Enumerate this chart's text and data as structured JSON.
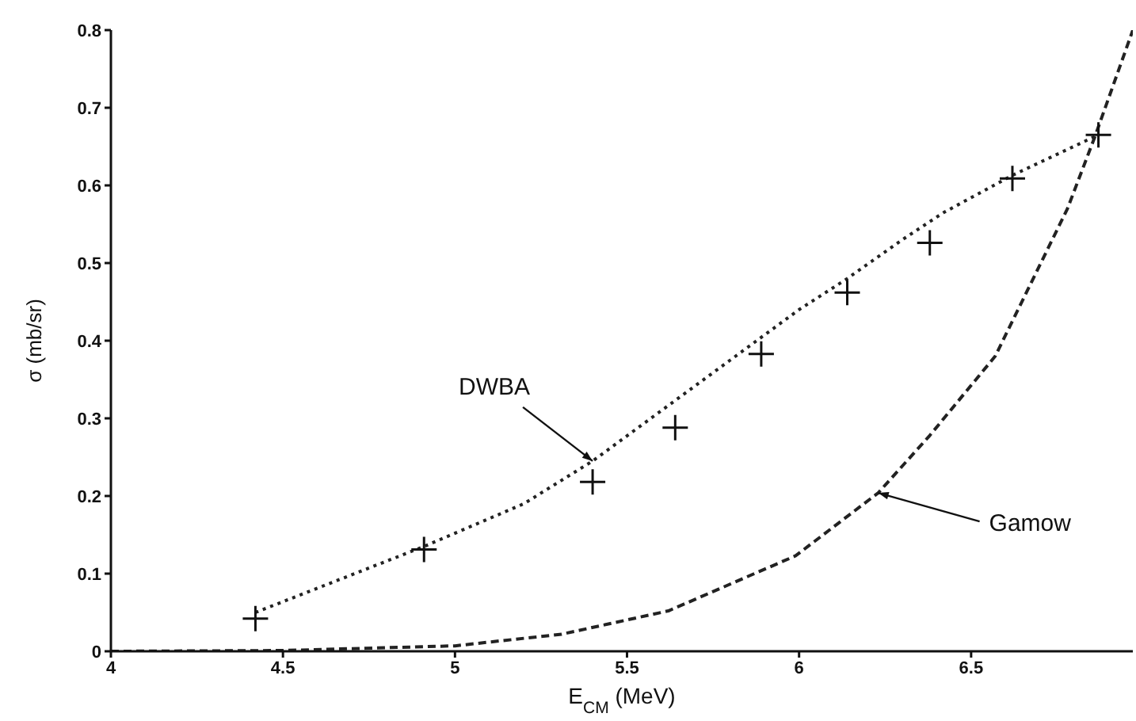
{
  "chart_data": {
    "type": "scatter",
    "xlabel": "E$_{CM}$ (MeV)",
    "ylabel": "σ (mb/sr)",
    "xlim": [
      4,
      6.97
    ],
    "xticks": [
      4,
      4.5,
      5,
      5.5,
      6,
      6.5
    ],
    "ylim": [
      0,
      0.8
    ],
    "yticks": [
      0,
      0.1,
      0.2,
      0.3,
      0.4,
      0.5,
      0.6,
      0.7,
      0.8
    ],
    "grid": false,
    "series": [
      {
        "marker": "cross",
        "color": "#111111",
        "x": [
          4.42,
          4.91,
          5.4,
          5.64,
          5.89,
          6.14,
          6.38,
          6.62,
          6.87
        ],
        "values": [
          0.042,
          0.131,
          0.218,
          0.288,
          0.383,
          0.462,
          0.526,
          0.609,
          0.665
        ]
      },
      {
        "type": "line",
        "line_style": "dotted",
        "marker": "none",
        "color": "#222222",
        "x": [
          4.42,
          4.91,
          5.2,
          5.4,
          5.6,
          5.8,
          6.0,
          6.14,
          6.3,
          6.42,
          6.62,
          6.86
        ],
        "values": [
          0.05,
          0.135,
          0.19,
          0.245,
          0.31,
          0.375,
          0.44,
          0.48,
          0.53,
          0.565,
          0.613,
          0.663
        ]
      },
      {
        "type": "line",
        "line_style": "dashed",
        "marker": "none",
        "color": "#222222",
        "x": [
          4,
          4.5,
          5,
          5.31,
          5.62,
          5.99,
          6.23,
          6.38,
          6.57,
          6.78,
          6.86,
          6.97
        ],
        "values": [
          0,
          0.001,
          0.007,
          0.022,
          0.052,
          0.123,
          0.204,
          0.278,
          0.38,
          0.57,
          0.663,
          0.8
        ]
      }
    ],
    "annotations": [
      {
        "text": "DWBA",
        "x": 5.4,
        "y": 0.245
      },
      {
        "text": "Gamow",
        "x": 6.23,
        "y": 0.204
      }
    ]
  }
}
